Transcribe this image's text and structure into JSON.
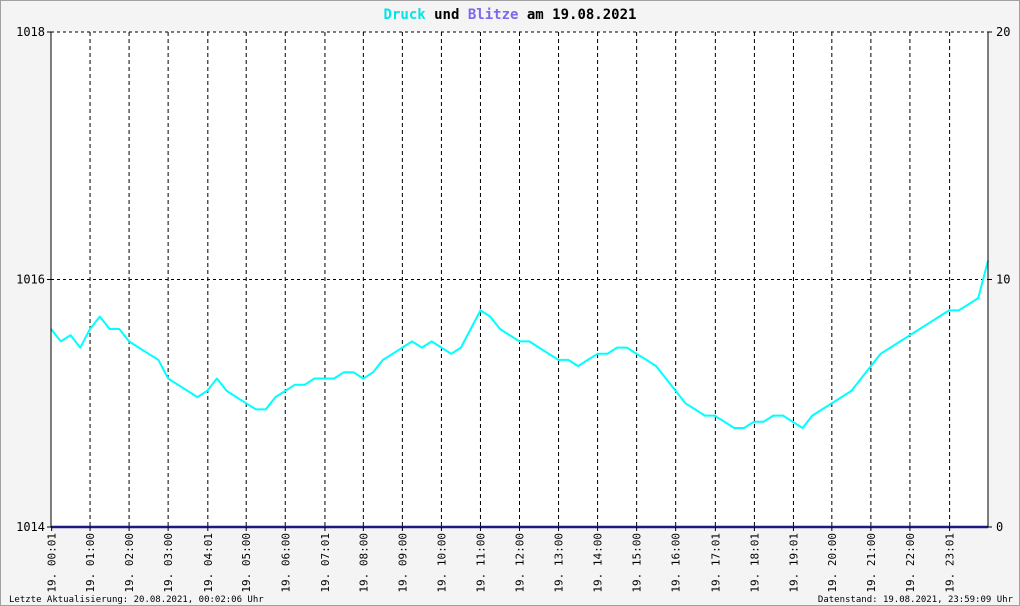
{
  "title": {
    "part1": "Druck",
    "part2": " und ",
    "part3": "Blitze",
    "part4": " am 19.08.2021",
    "color1": "#00e5e5",
    "color2": "#000000",
    "color3": "#7b68ee",
    "color4": "#000000"
  },
  "footer": {
    "left": "Letzte Aktualisierung: 20.08.2021, 00:02:06 Uhr",
    "right": "Datenstand: 19.08.2021, 23:59:09 Uhr"
  },
  "chart_data": {
    "type": "line",
    "grid": true,
    "y_left": {
      "min": 1014,
      "max": 1018,
      "ticks": [
        "1014",
        "1016",
        "1018"
      ]
    },
    "y_right": {
      "min": 0,
      "max": 20,
      "ticks": [
        "0",
        "10",
        "20"
      ]
    },
    "x_range_hours": [
      0,
      24
    ],
    "x_ticks": [
      {
        "hour": 0.0167,
        "label": "19. 00:01"
      },
      {
        "hour": 1.0,
        "label": "19. 01:00"
      },
      {
        "hour": 2.0,
        "label": "19. 02:00"
      },
      {
        "hour": 3.0,
        "label": "19. 03:00"
      },
      {
        "hour": 4.0167,
        "label": "19. 04:01"
      },
      {
        "hour": 5.0,
        "label": "19. 05:00"
      },
      {
        "hour": 6.0,
        "label": "19. 06:00"
      },
      {
        "hour": 7.0167,
        "label": "19. 07:01"
      },
      {
        "hour": 8.0,
        "label": "19. 08:00"
      },
      {
        "hour": 9.0,
        "label": "19. 09:00"
      },
      {
        "hour": 10.0,
        "label": "19. 10:00"
      },
      {
        "hour": 11.0,
        "label": "19. 11:00"
      },
      {
        "hour": 12.0,
        "label": "19. 12:00"
      },
      {
        "hour": 13.0,
        "label": "19. 13:00"
      },
      {
        "hour": 14.0,
        "label": "19. 14:00"
      },
      {
        "hour": 15.0,
        "label": "19. 15:00"
      },
      {
        "hour": 16.0,
        "label": "19. 16:00"
      },
      {
        "hour": 17.0167,
        "label": "19. 17:01"
      },
      {
        "hour": 18.0167,
        "label": "19. 18:01"
      },
      {
        "hour": 19.0167,
        "label": "19. 19:01"
      },
      {
        "hour": 20.0,
        "label": "19. 20:00"
      },
      {
        "hour": 21.0,
        "label": "19. 21:00"
      },
      {
        "hour": 22.0,
        "label": "19. 22:00"
      },
      {
        "hour": 23.0167,
        "label": "19. 23:01"
      }
    ],
    "series": [
      {
        "color": "#00ffff",
        "axis": "left",
        "points": [
          [
            0.0,
            1015.6
          ],
          [
            0.25,
            1015.5
          ],
          [
            0.5,
            1015.55
          ],
          [
            0.75,
            1015.45
          ],
          [
            1.0,
            1015.6
          ],
          [
            1.25,
            1015.7
          ],
          [
            1.5,
            1015.6
          ],
          [
            1.75,
            1015.6
          ],
          [
            2.0,
            1015.5
          ],
          [
            2.25,
            1015.45
          ],
          [
            2.5,
            1015.4
          ],
          [
            2.75,
            1015.35
          ],
          [
            3.0,
            1015.2
          ],
          [
            3.25,
            1015.15
          ],
          [
            3.5,
            1015.1
          ],
          [
            3.75,
            1015.05
          ],
          [
            4.0,
            1015.1
          ],
          [
            4.25,
            1015.2
          ],
          [
            4.5,
            1015.1
          ],
          [
            4.75,
            1015.05
          ],
          [
            5.0,
            1015.0
          ],
          [
            5.25,
            1014.95
          ],
          [
            5.5,
            1014.95
          ],
          [
            5.75,
            1015.05
          ],
          [
            6.0,
            1015.1
          ],
          [
            6.25,
            1015.15
          ],
          [
            6.5,
            1015.15
          ],
          [
            6.75,
            1015.2
          ],
          [
            7.0,
            1015.2
          ],
          [
            7.25,
            1015.2
          ],
          [
            7.5,
            1015.25
          ],
          [
            7.75,
            1015.25
          ],
          [
            8.0,
            1015.2
          ],
          [
            8.25,
            1015.25
          ],
          [
            8.5,
            1015.35
          ],
          [
            8.75,
            1015.4
          ],
          [
            9.0,
            1015.45
          ],
          [
            9.25,
            1015.5
          ],
          [
            9.5,
            1015.45
          ],
          [
            9.75,
            1015.5
          ],
          [
            10.0,
            1015.45
          ],
          [
            10.25,
            1015.4
          ],
          [
            10.5,
            1015.45
          ],
          [
            10.75,
            1015.6
          ],
          [
            11.0,
            1015.75
          ],
          [
            11.25,
            1015.7
          ],
          [
            11.5,
            1015.6
          ],
          [
            11.75,
            1015.55
          ],
          [
            12.0,
            1015.5
          ],
          [
            12.25,
            1015.5
          ],
          [
            12.5,
            1015.45
          ],
          [
            12.75,
            1015.4
          ],
          [
            13.0,
            1015.35
          ],
          [
            13.25,
            1015.35
          ],
          [
            13.5,
            1015.3
          ],
          [
            13.75,
            1015.35
          ],
          [
            14.0,
            1015.4
          ],
          [
            14.25,
            1015.4
          ],
          [
            14.5,
            1015.45
          ],
          [
            14.75,
            1015.45
          ],
          [
            15.0,
            1015.4
          ],
          [
            15.25,
            1015.35
          ],
          [
            15.5,
            1015.3
          ],
          [
            15.75,
            1015.2
          ],
          [
            16.0,
            1015.1
          ],
          [
            16.25,
            1015.0
          ],
          [
            16.5,
            1014.95
          ],
          [
            16.75,
            1014.9
          ],
          [
            17.0,
            1014.9
          ],
          [
            17.25,
            1014.85
          ],
          [
            17.5,
            1014.8
          ],
          [
            17.75,
            1014.8
          ],
          [
            18.0,
            1014.85
          ],
          [
            18.25,
            1014.85
          ],
          [
            18.5,
            1014.9
          ],
          [
            18.75,
            1014.9
          ],
          [
            19.0,
            1014.85
          ],
          [
            19.25,
            1014.8
          ],
          [
            19.5,
            1014.9
          ],
          [
            19.75,
            1014.95
          ],
          [
            20.0,
            1015.0
          ],
          [
            20.25,
            1015.05
          ],
          [
            20.5,
            1015.1
          ],
          [
            20.75,
            1015.2
          ],
          [
            21.0,
            1015.3
          ],
          [
            21.25,
            1015.4
          ],
          [
            21.5,
            1015.45
          ],
          [
            21.75,
            1015.5
          ],
          [
            22.0,
            1015.55
          ],
          [
            22.25,
            1015.6
          ],
          [
            22.5,
            1015.65
          ],
          [
            22.75,
            1015.7
          ],
          [
            23.0,
            1015.75
          ],
          [
            23.25,
            1015.75
          ],
          [
            23.5,
            1015.8
          ],
          [
            23.75,
            1015.85
          ],
          [
            24.0,
            1016.15
          ]
        ]
      },
      {
        "color": "#1a1a80",
        "axis": "right",
        "points": [
          [
            0.0,
            0
          ],
          [
            24.0,
            0
          ]
        ]
      }
    ]
  }
}
